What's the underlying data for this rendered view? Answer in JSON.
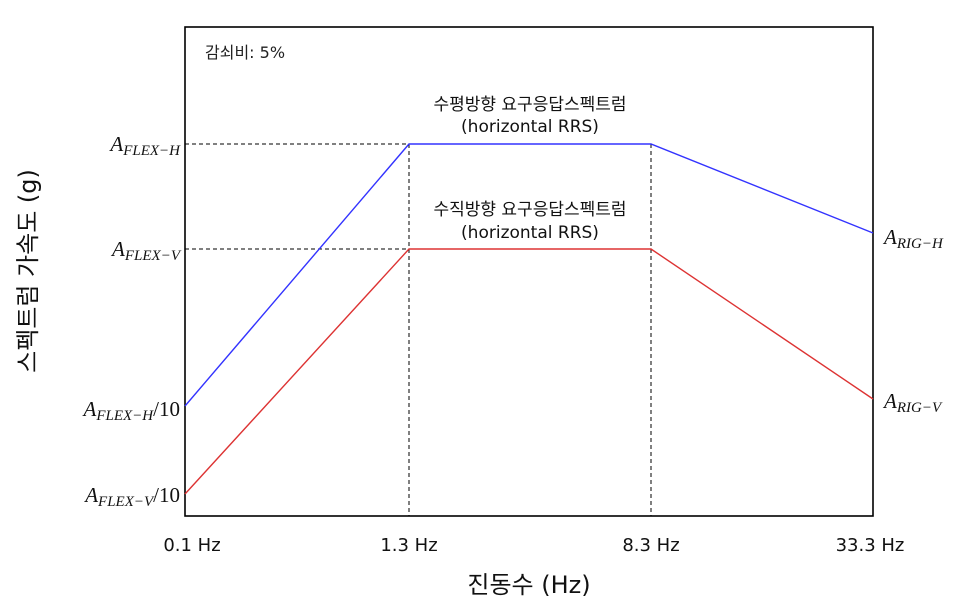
{
  "chart_data": {
    "type": "line",
    "title": "",
    "xlabel": "진동수 (Hz)",
    "ylabel": "스펙트럼 가속도 (g)",
    "damping_note": "감쇠비: 5%",
    "x_ticks": [
      "0.1 Hz",
      "1.3 Hz",
      "8.3 Hz",
      "33.3 Hz"
    ],
    "y_ticks": [
      {
        "main": "A",
        "sub": "FLEX−H",
        "suffix": ""
      },
      {
        "main": "A",
        "sub": "FLEX−V",
        "suffix": ""
      },
      {
        "main": "A",
        "sub": "FLEX−H",
        "suffix": "/10"
      },
      {
        "main": "A",
        "sub": "FLEX−V",
        "suffix": "/10"
      }
    ],
    "series": [
      {
        "name_line1": "수평방향 요구응답스펙트럼",
        "name_line2": "(horizontal RRS)",
        "color": "#3333ff",
        "x": [
          0.1,
          1.3,
          8.3,
          33.3
        ],
        "y_labels": [
          "A_FLEX-H/10",
          "A_FLEX-H",
          "A_FLEX-H",
          "A_RIG-H"
        ],
        "end_label": {
          "main": "A",
          "sub": "RIG−H"
        }
      },
      {
        "name_line1": "수직방향 요구응답스펙트럼",
        "name_line2": "(horizontal RRS)",
        "color": "#dd3333",
        "x": [
          0.1,
          1.3,
          8.3,
          33.3
        ],
        "y_labels": [
          "A_FLEX-V/10",
          "A_FLEX-V",
          "A_FLEX-V",
          "A_RIG-V"
        ],
        "end_label": {
          "main": "A",
          "sub": "RIG−V"
        }
      }
    ],
    "grid": false,
    "legend": "none"
  }
}
